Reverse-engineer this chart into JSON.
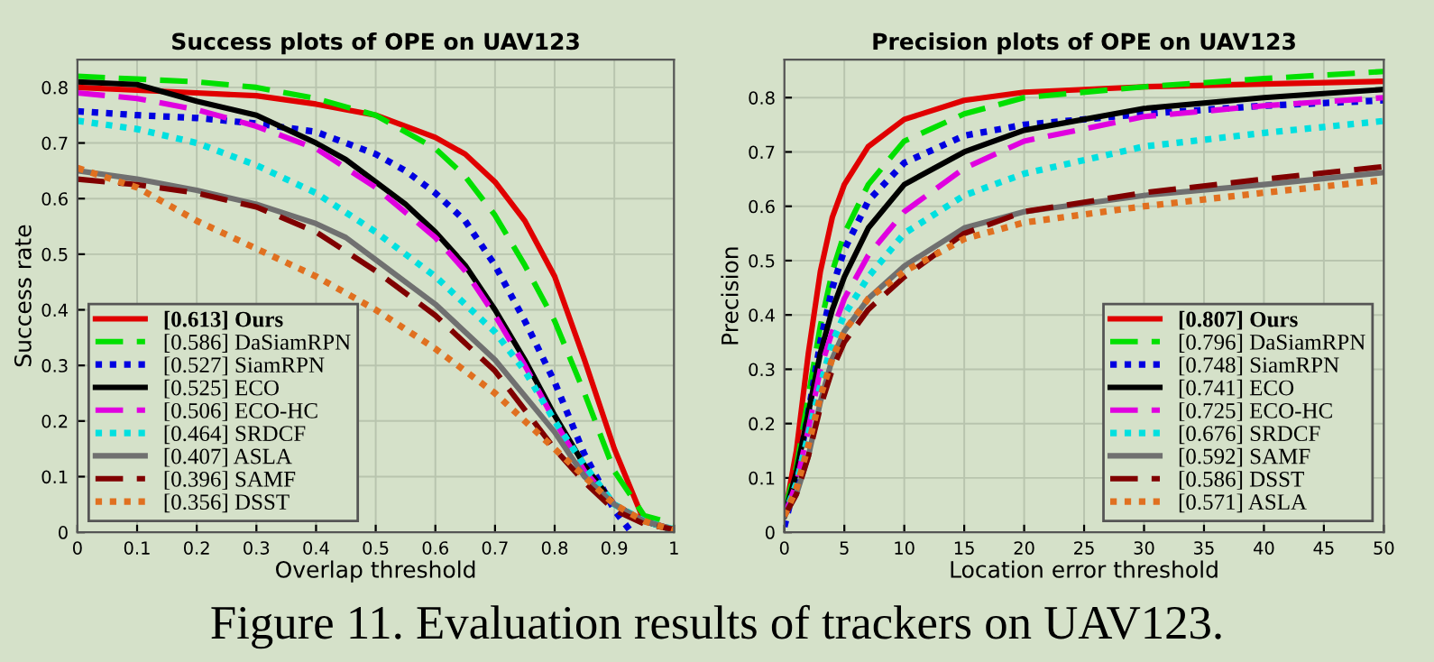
{
  "chart_data": [
    {
      "type": "line",
      "title": "Success plots of OPE on UAV123",
      "xlabel": "Overlap threshold",
      "ylabel": "Success rate",
      "xlim": [
        0,
        1
      ],
      "ylim": [
        0,
        0.85
      ],
      "xticks": [
        0,
        0.1,
        0.2,
        0.3,
        0.4,
        0.5,
        0.6,
        0.7,
        0.8,
        0.9,
        1
      ],
      "yticks": [
        0,
        0.1,
        0.2,
        0.3,
        0.4,
        0.5,
        0.6,
        0.7,
        0.8
      ],
      "grid": true,
      "legend": "bottom left",
      "marker": "none",
      "annotations": [
        "Figure 11. Evaluation results of trackers on UAV123."
      ],
      "series": [
        {
          "name": "[0.613] Ours",
          "color": "#e00000",
          "line_style": "solid",
          "x": [
            0,
            0.1,
            0.2,
            0.3,
            0.4,
            0.5,
            0.6,
            0.65,
            0.7,
            0.75,
            0.8,
            0.85,
            0.9,
            0.95,
            1
          ],
          "values": [
            0.8,
            0.795,
            0.79,
            0.785,
            0.77,
            0.75,
            0.71,
            0.68,
            0.63,
            0.56,
            0.46,
            0.31,
            0.15,
            0.02,
            0.005
          ]
        },
        {
          "name": "[0.586] DaSiamRPN",
          "color": "#00e000",
          "line_style": "dashed",
          "x": [
            0,
            0.1,
            0.2,
            0.3,
            0.4,
            0.5,
            0.55,
            0.6,
            0.65,
            0.7,
            0.75,
            0.8,
            0.85,
            0.9,
            0.95,
            1
          ],
          "values": [
            0.82,
            0.815,
            0.81,
            0.8,
            0.78,
            0.75,
            0.72,
            0.69,
            0.64,
            0.57,
            0.48,
            0.38,
            0.25,
            0.11,
            0.03,
            0.015
          ]
        },
        {
          "name": "[0.527] SiamRPN",
          "color": "#0000e0",
          "line_style": "dotted",
          "x": [
            0,
            0.1,
            0.2,
            0.3,
            0.4,
            0.5,
            0.55,
            0.6,
            0.65,
            0.7,
            0.75,
            0.8,
            0.85,
            0.9,
            0.925
          ],
          "values": [
            0.757,
            0.75,
            0.745,
            0.735,
            0.72,
            0.68,
            0.65,
            0.61,
            0.56,
            0.48,
            0.38,
            0.27,
            0.14,
            0.04,
            0.005
          ]
        },
        {
          "name": "[0.525] ECO",
          "color": "#000000",
          "line_style": "solid",
          "x": [
            0,
            0.1,
            0.2,
            0.3,
            0.4,
            0.45,
            0.5,
            0.55,
            0.6,
            0.65,
            0.7,
            0.75,
            0.8,
            0.85,
            0.9,
            0.95,
            1
          ],
          "values": [
            0.81,
            0.805,
            0.775,
            0.75,
            0.7,
            0.67,
            0.63,
            0.59,
            0.54,
            0.48,
            0.4,
            0.31,
            0.21,
            0.12,
            0.05,
            0.02,
            0.003
          ]
        },
        {
          "name": "[0.506] ECO-HC",
          "color": "#e000e0",
          "line_style": "dashed",
          "x": [
            0,
            0.1,
            0.2,
            0.3,
            0.4,
            0.5,
            0.6,
            0.65,
            0.7,
            0.75,
            0.8,
            0.85,
            0.9,
            0.95,
            1
          ],
          "values": [
            0.79,
            0.78,
            0.76,
            0.73,
            0.69,
            0.62,
            0.53,
            0.47,
            0.39,
            0.3,
            0.2,
            0.11,
            0.05,
            0.02,
            0.005
          ]
        },
        {
          "name": "[0.464] SRDCF",
          "color": "#00e0e0",
          "line_style": "dotted",
          "x": [
            0,
            0.1,
            0.2,
            0.3,
            0.4,
            0.5,
            0.6,
            0.7,
            0.75,
            0.8,
            0.85,
            0.9,
            0.95,
            1
          ],
          "values": [
            0.74,
            0.725,
            0.7,
            0.66,
            0.61,
            0.54,
            0.46,
            0.36,
            0.29,
            0.2,
            0.12,
            0.05,
            0.02,
            0.005
          ]
        },
        {
          "name": "[0.407] ASLA",
          "color": "#707070",
          "line_style": "solid",
          "x": [
            0,
            0.1,
            0.2,
            0.3,
            0.4,
            0.45,
            0.5,
            0.6,
            0.7,
            0.8,
            0.85,
            0.9,
            0.95,
            1
          ],
          "values": [
            0.65,
            0.635,
            0.615,
            0.59,
            0.555,
            0.53,
            0.49,
            0.41,
            0.31,
            0.18,
            0.1,
            0.05,
            0.02,
            0.005
          ]
        },
        {
          "name": "[0.396] SAMF",
          "color": "#800000",
          "line_style": "dashed",
          "x": [
            0,
            0.1,
            0.2,
            0.3,
            0.4,
            0.5,
            0.6,
            0.7,
            0.8,
            0.85,
            0.9,
            0.95,
            1
          ],
          "values": [
            0.635,
            0.625,
            0.61,
            0.585,
            0.54,
            0.47,
            0.39,
            0.29,
            0.15,
            0.09,
            0.04,
            0.015,
            0.005
          ]
        },
        {
          "name": "[0.356] DSST",
          "color": "#e07020",
          "line_style": "dotted",
          "x": [
            0,
            0.1,
            0.2,
            0.3,
            0.4,
            0.5,
            0.6,
            0.7,
            0.8,
            0.9,
            0.95,
            1
          ],
          "values": [
            0.655,
            0.62,
            0.56,
            0.51,
            0.46,
            0.4,
            0.33,
            0.25,
            0.15,
            0.05,
            0.02,
            0.003
          ]
        }
      ]
    },
    {
      "type": "line",
      "title": "Precision plots of OPE on UAV123",
      "xlabel": "Location error threshold",
      "ylabel": "Precision",
      "xlim": [
        0,
        50
      ],
      "ylim": [
        0,
        0.87
      ],
      "xticks": [
        0,
        5,
        10,
        15,
        20,
        25,
        30,
        35,
        40,
        45,
        50
      ],
      "yticks": [
        0,
        0.1,
        0.2,
        0.3,
        0.4,
        0.5,
        0.6,
        0.7,
        0.8
      ],
      "grid": true,
      "legend": "bottom right",
      "marker": "none",
      "series": [
        {
          "name": "[0.807] Ours",
          "color": "#e00000",
          "line_style": "solid",
          "x": [
            0,
            1,
            2,
            3,
            4,
            5,
            7,
            10,
            15,
            20,
            30,
            40,
            50
          ],
          "values": [
            0.03,
            0.15,
            0.33,
            0.48,
            0.58,
            0.64,
            0.71,
            0.76,
            0.795,
            0.81,
            0.82,
            0.825,
            0.83
          ]
        },
        {
          "name": "[0.796] DaSiamRPN",
          "color": "#00e000",
          "line_style": "dashed",
          "x": [
            0,
            1,
            2,
            3,
            4,
            5,
            7,
            10,
            15,
            20,
            30,
            40,
            50
          ],
          "values": [
            0.04,
            0.12,
            0.25,
            0.38,
            0.48,
            0.55,
            0.64,
            0.72,
            0.77,
            0.8,
            0.82,
            0.835,
            0.848
          ]
        },
        {
          "name": "[0.748] SiamRPN",
          "color": "#0000e0",
          "line_style": "dotted",
          "x": [
            0,
            1,
            2,
            3,
            4,
            5,
            7,
            10,
            15,
            20,
            30,
            40,
            50
          ],
          "values": [
            0.01,
            0.1,
            0.22,
            0.35,
            0.45,
            0.52,
            0.61,
            0.68,
            0.73,
            0.75,
            0.77,
            0.785,
            0.795
          ]
        },
        {
          "name": "[0.741] ECO",
          "color": "#000000",
          "line_style": "solid",
          "x": [
            0,
            1,
            2,
            3,
            4,
            5,
            7,
            10,
            15,
            20,
            30,
            40,
            50
          ],
          "values": [
            0.03,
            0.11,
            0.22,
            0.33,
            0.41,
            0.47,
            0.56,
            0.64,
            0.7,
            0.74,
            0.78,
            0.8,
            0.815
          ]
        },
        {
          "name": "[0.725] ECO-HC",
          "color": "#e000e0",
          "line_style": "dashed",
          "x": [
            0,
            1,
            2,
            3,
            4,
            5,
            7,
            10,
            15,
            20,
            30,
            40,
            50
          ],
          "values": [
            0.03,
            0.09,
            0.19,
            0.3,
            0.37,
            0.43,
            0.51,
            0.59,
            0.67,
            0.72,
            0.765,
            0.785,
            0.8
          ]
        },
        {
          "name": "[0.676] SRDCF",
          "color": "#00e0e0",
          "line_style": "dotted",
          "x": [
            0,
            1,
            2,
            3,
            4,
            5,
            7,
            10,
            15,
            20,
            30,
            40,
            50
          ],
          "values": [
            0.03,
            0.09,
            0.18,
            0.27,
            0.35,
            0.4,
            0.47,
            0.55,
            0.62,
            0.66,
            0.71,
            0.735,
            0.757
          ]
        },
        {
          "name": "[0.592] SAMF",
          "color": "#707070",
          "line_style": "solid",
          "x": [
            0,
            1,
            2,
            3,
            4,
            5,
            7,
            10,
            15,
            20,
            30,
            40,
            50
          ],
          "values": [
            0.03,
            0.07,
            0.14,
            0.24,
            0.32,
            0.37,
            0.43,
            0.49,
            0.56,
            0.59,
            0.62,
            0.64,
            0.662
          ]
        },
        {
          "name": "[0.586] DSST",
          "color": "#800000",
          "line_style": "dashed",
          "x": [
            0,
            1,
            2,
            3,
            4,
            5,
            7,
            10,
            15,
            20,
            30,
            40,
            50
          ],
          "values": [
            0.03,
            0.07,
            0.14,
            0.23,
            0.3,
            0.35,
            0.41,
            0.47,
            0.55,
            0.59,
            0.625,
            0.65,
            0.673
          ]
        },
        {
          "name": "[0.571] ASLA",
          "color": "#e07020",
          "line_style": "dotted",
          "x": [
            0,
            1,
            2,
            3,
            4,
            5,
            7,
            10,
            15,
            20,
            30,
            40,
            50
          ],
          "values": [
            0.03,
            0.08,
            0.16,
            0.25,
            0.32,
            0.37,
            0.43,
            0.48,
            0.54,
            0.57,
            0.6,
            0.625,
            0.648
          ]
        }
      ]
    }
  ]
}
